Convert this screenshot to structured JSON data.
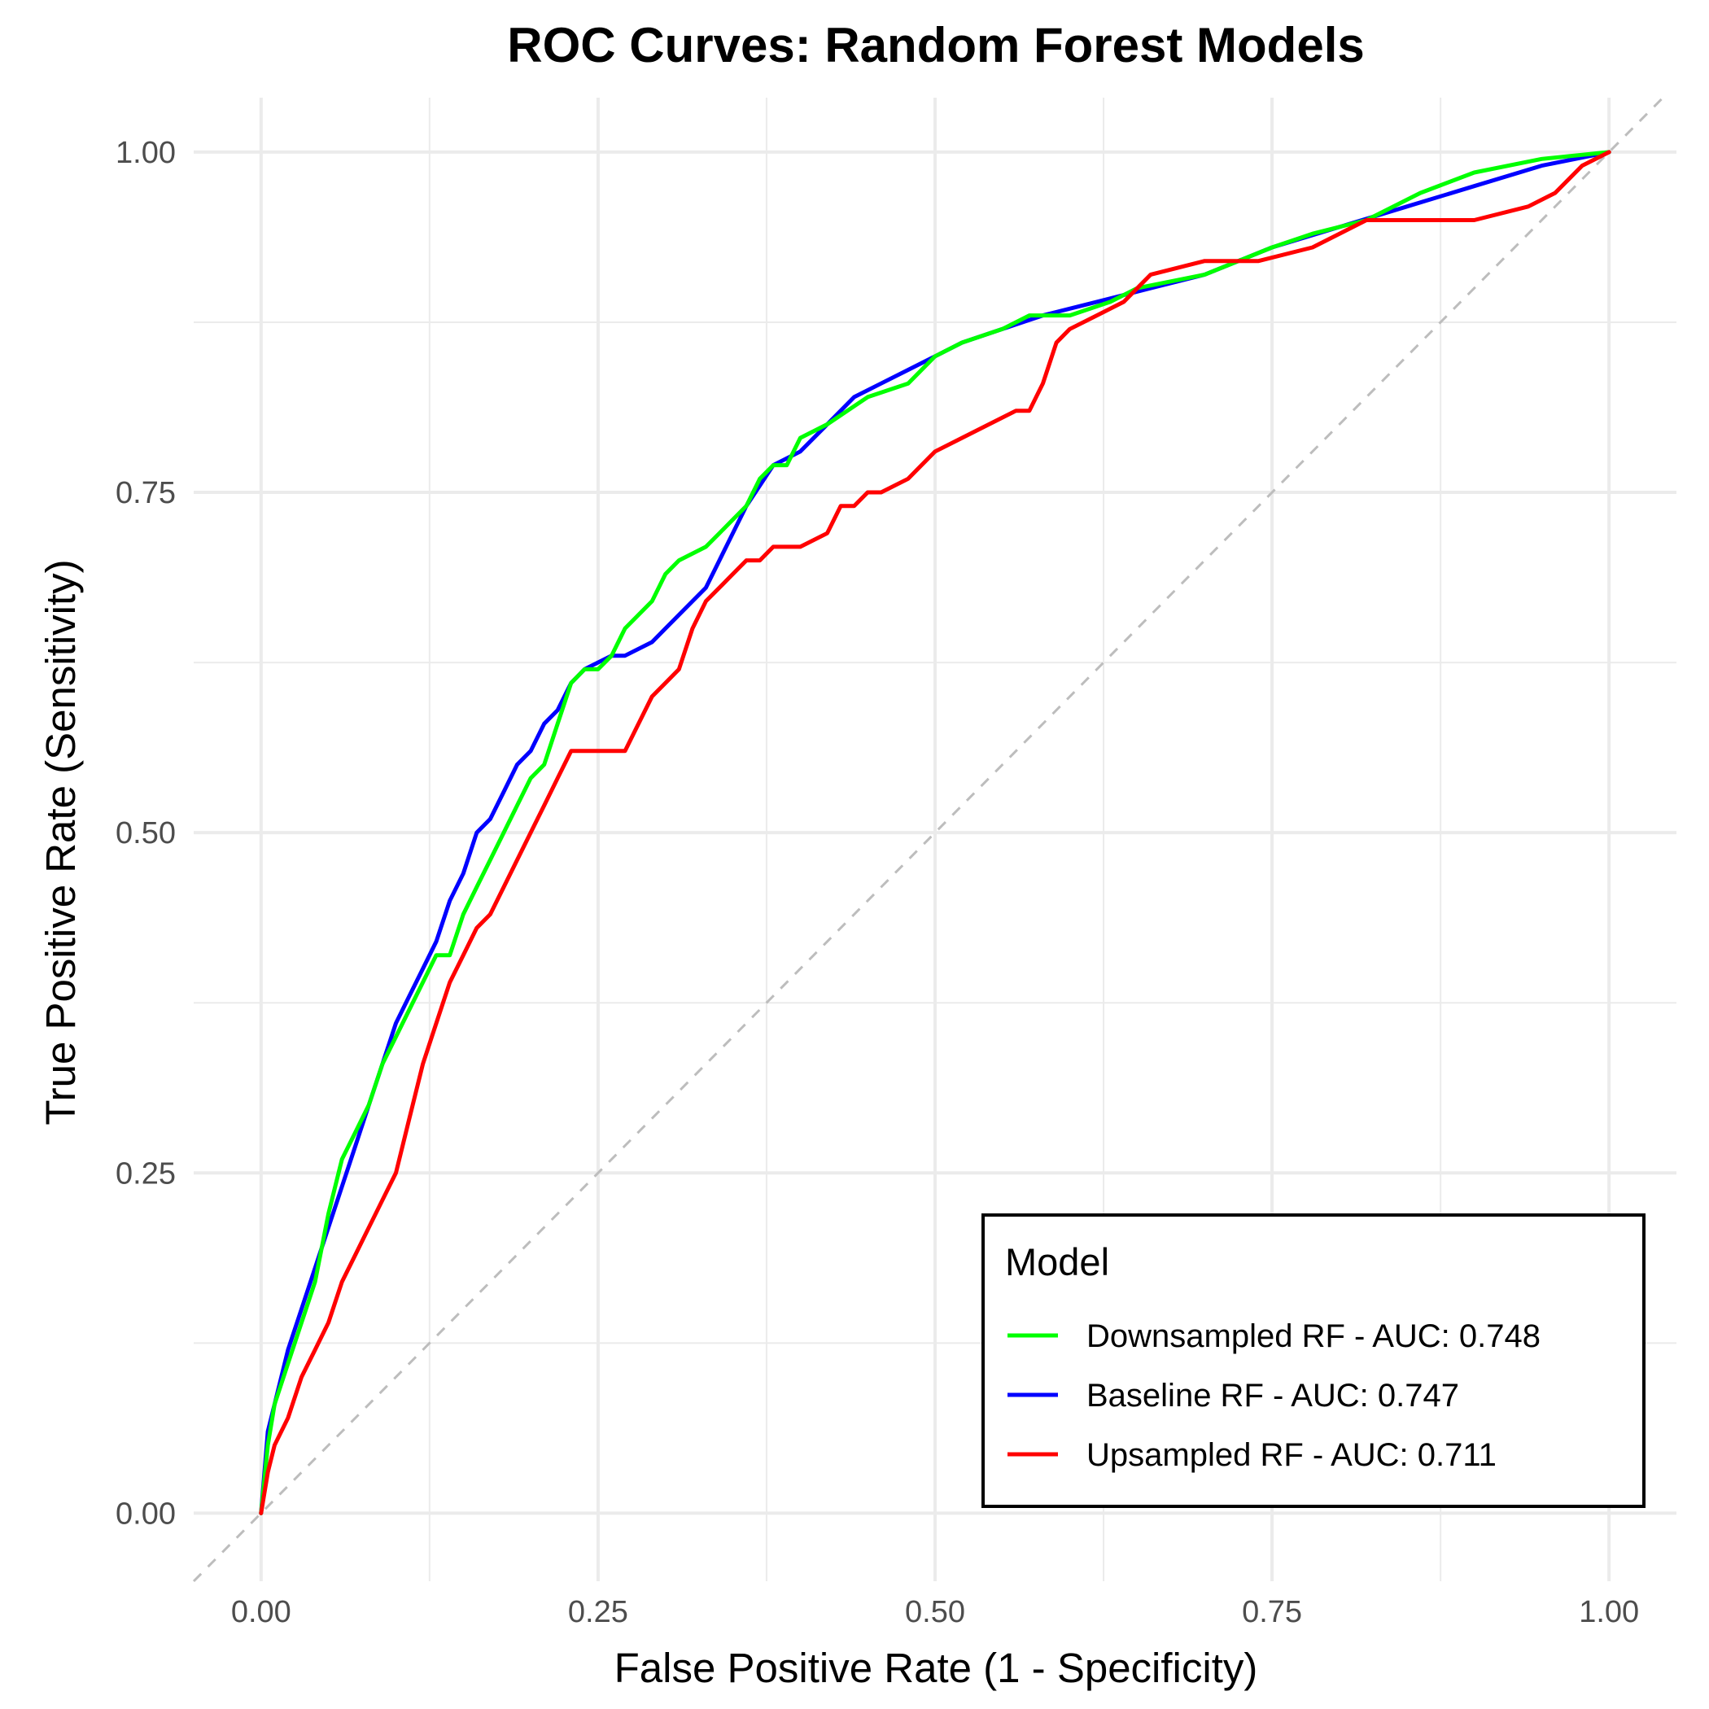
{
  "chart_data": {
    "type": "line",
    "title": "ROC Curves: Random Forest Models",
    "xlabel": "False Positive Rate (1 - Specificity)",
    "ylabel": "True Positive Rate (Sensitivity)",
    "xlim": [
      -0.05,
      1.05
    ],
    "ylim": [
      -0.05,
      1.04
    ],
    "xticks": [
      0.0,
      0.25,
      0.5,
      0.75,
      1.0
    ],
    "yticks": [
      0.0,
      0.25,
      0.5,
      0.75,
      1.0
    ],
    "xtick_labels": [
      "0.00",
      "0.25",
      "0.50",
      "0.75",
      "1.00"
    ],
    "ytick_labels": [
      "0.00",
      "0.25",
      "0.50",
      "0.75",
      "1.00"
    ],
    "grid": true,
    "reference_line": "diagonal y = x (dashed, grey)",
    "legend": {
      "title": "Model",
      "placement": "bottom-right",
      "boxed": true
    },
    "series": [
      {
        "name": "Downsampled RF - AUC: 0.748",
        "color": "#00ff00",
        "x": [
          0.0,
          0.005,
          0.01,
          0.02,
          0.03,
          0.04,
          0.05,
          0.06,
          0.07,
          0.08,
          0.09,
          0.1,
          0.11,
          0.12,
          0.13,
          0.14,
          0.15,
          0.16,
          0.17,
          0.18,
          0.19,
          0.2,
          0.21,
          0.22,
          0.23,
          0.24,
          0.25,
          0.26,
          0.27,
          0.28,
          0.29,
          0.3,
          0.31,
          0.33,
          0.34,
          0.35,
          0.36,
          0.37,
          0.38,
          0.39,
          0.4,
          0.42,
          0.45,
          0.48,
          0.5,
          0.52,
          0.55,
          0.57,
          0.6,
          0.63,
          0.65,
          0.7,
          0.75,
          0.78,
          0.82,
          0.86,
          0.9,
          0.95,
          1.0
        ],
        "y": [
          0.0,
          0.05,
          0.08,
          0.11,
          0.14,
          0.17,
          0.22,
          0.26,
          0.28,
          0.3,
          0.33,
          0.35,
          0.37,
          0.39,
          0.41,
          0.41,
          0.44,
          0.46,
          0.48,
          0.5,
          0.52,
          0.54,
          0.55,
          0.58,
          0.61,
          0.62,
          0.62,
          0.63,
          0.65,
          0.66,
          0.67,
          0.69,
          0.7,
          0.71,
          0.72,
          0.73,
          0.74,
          0.76,
          0.77,
          0.77,
          0.79,
          0.8,
          0.82,
          0.83,
          0.85,
          0.86,
          0.87,
          0.88,
          0.88,
          0.89,
          0.9,
          0.91,
          0.93,
          0.94,
          0.95,
          0.97,
          0.985,
          0.995,
          1.0
        ]
      },
      {
        "name": "Baseline RF - AUC: 0.747",
        "color": "#0000ff",
        "x": [
          0.0,
          0.005,
          0.01,
          0.02,
          0.03,
          0.04,
          0.05,
          0.06,
          0.07,
          0.08,
          0.09,
          0.1,
          0.11,
          0.12,
          0.13,
          0.14,
          0.15,
          0.16,
          0.17,
          0.18,
          0.19,
          0.2,
          0.21,
          0.22,
          0.23,
          0.24,
          0.26,
          0.27,
          0.29,
          0.3,
          0.31,
          0.32,
          0.33,
          0.34,
          0.35,
          0.36,
          0.38,
          0.4,
          0.42,
          0.44,
          0.46,
          0.48,
          0.5,
          0.52,
          0.55,
          0.58,
          0.62,
          0.66,
          0.7,
          0.75,
          0.8,
          0.85,
          0.9,
          0.95,
          1.0
        ],
        "y": [
          0.0,
          0.06,
          0.08,
          0.12,
          0.15,
          0.18,
          0.21,
          0.24,
          0.27,
          0.3,
          0.33,
          0.36,
          0.38,
          0.4,
          0.42,
          0.45,
          0.47,
          0.5,
          0.51,
          0.53,
          0.55,
          0.56,
          0.58,
          0.59,
          0.61,
          0.62,
          0.63,
          0.63,
          0.64,
          0.65,
          0.66,
          0.67,
          0.68,
          0.7,
          0.72,
          0.74,
          0.77,
          0.78,
          0.8,
          0.82,
          0.83,
          0.84,
          0.85,
          0.86,
          0.87,
          0.88,
          0.89,
          0.9,
          0.91,
          0.93,
          0.945,
          0.96,
          0.975,
          0.99,
          1.0
        ]
      },
      {
        "name": "Upsampled RF - AUC: 0.711",
        "color": "#ff0000",
        "x": [
          0.0,
          0.005,
          0.01,
          0.02,
          0.03,
          0.04,
          0.05,
          0.06,
          0.07,
          0.08,
          0.09,
          0.1,
          0.11,
          0.12,
          0.13,
          0.14,
          0.15,
          0.16,
          0.17,
          0.18,
          0.19,
          0.2,
          0.21,
          0.22,
          0.23,
          0.25,
          0.27,
          0.28,
          0.29,
          0.3,
          0.31,
          0.32,
          0.33,
          0.34,
          0.35,
          0.36,
          0.37,
          0.38,
          0.39,
          0.4,
          0.42,
          0.43,
          0.44,
          0.45,
          0.46,
          0.48,
          0.5,
          0.52,
          0.54,
          0.56,
          0.57,
          0.58,
          0.59,
          0.6,
          0.62,
          0.64,
          0.66,
          0.7,
          0.74,
          0.78,
          0.82,
          0.86,
          0.9,
          0.94,
          0.96,
          0.98,
          1.0
        ],
        "y": [
          0.0,
          0.03,
          0.05,
          0.07,
          0.1,
          0.12,
          0.14,
          0.17,
          0.19,
          0.21,
          0.23,
          0.25,
          0.29,
          0.33,
          0.36,
          0.39,
          0.41,
          0.43,
          0.44,
          0.46,
          0.48,
          0.5,
          0.52,
          0.54,
          0.56,
          0.56,
          0.56,
          0.58,
          0.6,
          0.61,
          0.62,
          0.65,
          0.67,
          0.68,
          0.69,
          0.7,
          0.7,
          0.71,
          0.71,
          0.71,
          0.72,
          0.74,
          0.74,
          0.75,
          0.75,
          0.76,
          0.78,
          0.79,
          0.8,
          0.81,
          0.81,
          0.83,
          0.86,
          0.87,
          0.88,
          0.89,
          0.91,
          0.92,
          0.92,
          0.93,
          0.95,
          0.95,
          0.95,
          0.96,
          0.97,
          0.99,
          1.0
        ]
      }
    ]
  }
}
